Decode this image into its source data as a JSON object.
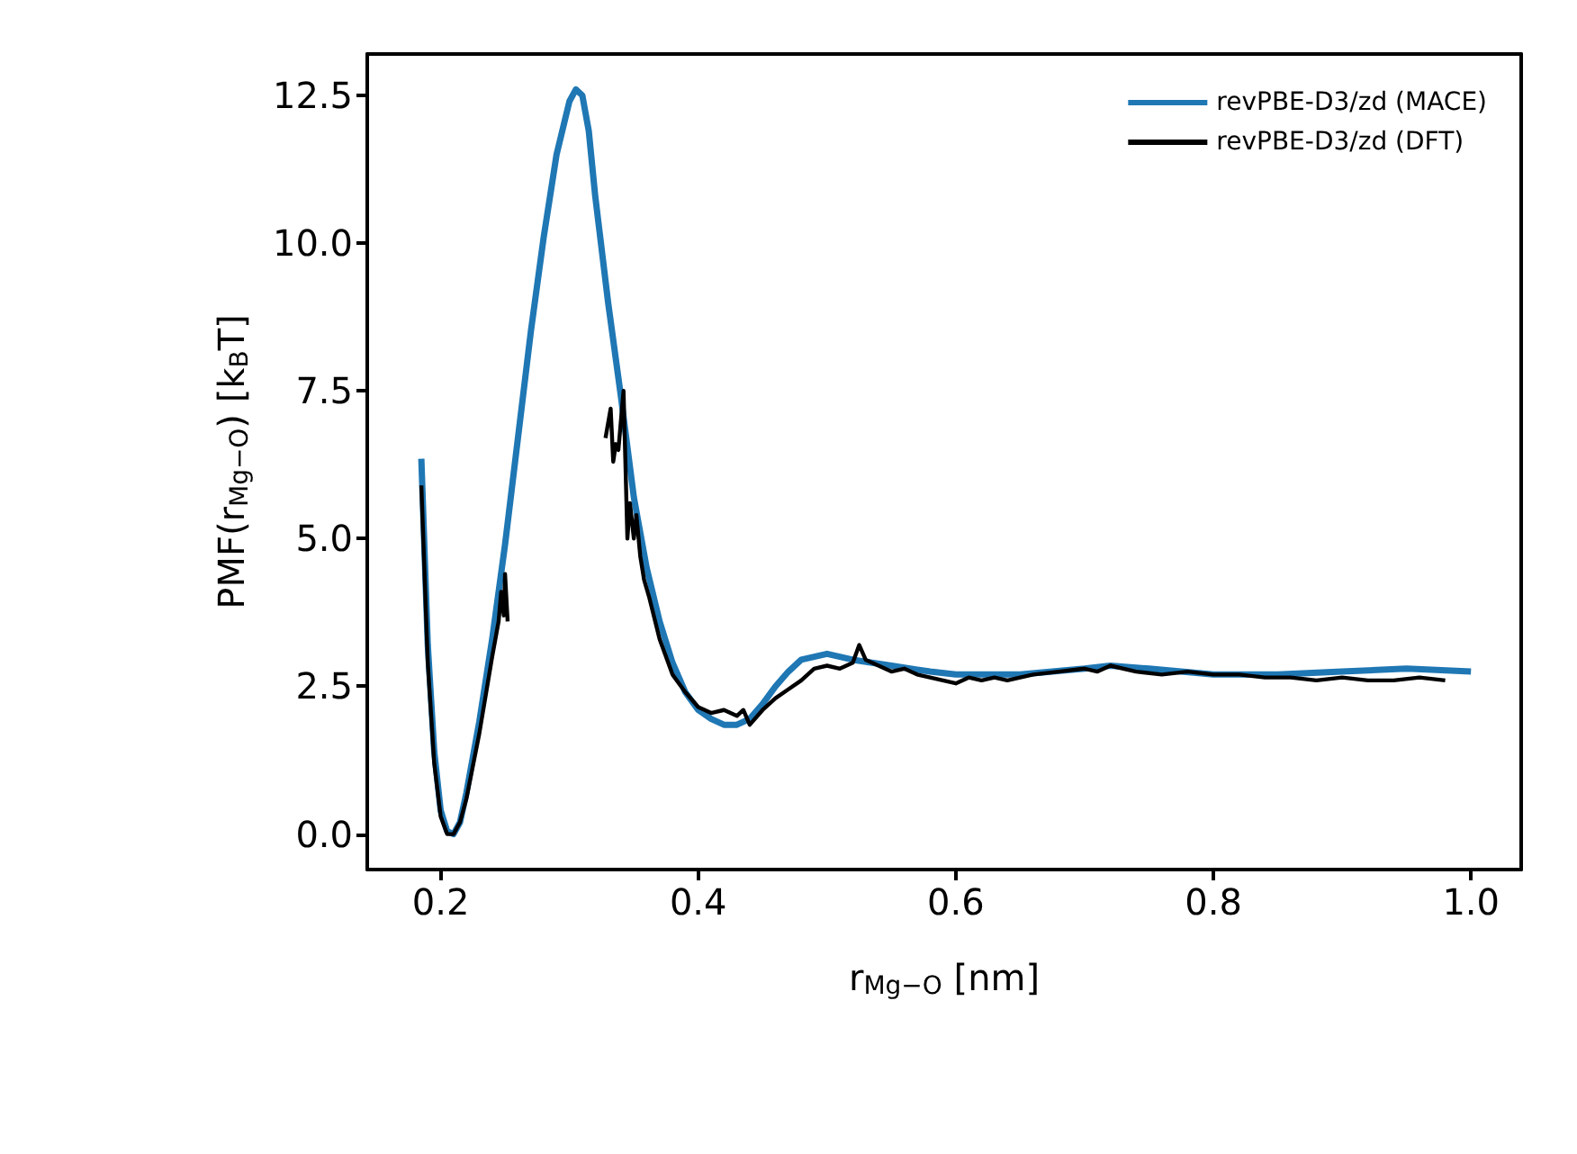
{
  "chart_data": {
    "type": "line",
    "xlabel": "r$_{Mg−O}$ [nm]",
    "ylabel": "PMF(r$_{Mg−O}$) [k$_{B}$T]",
    "xlim": [
      0.143,
      1.039
    ],
    "ylim": [
      -0.6,
      13.2
    ],
    "xticks": [
      0.2,
      0.4,
      0.6,
      0.8,
      {
        "value": 1.0,
        "label": "1.0"
      }
    ],
    "yticks": [
      {
        "value": 0,
        "label": "0.0"
      },
      2.5,
      {
        "value": 5,
        "label": "5.0"
      },
      7.5,
      {
        "value": 10,
        "label": "10.0"
      },
      12.5
    ],
    "grid": false,
    "legend": "top right",
    "marker": "none",
    "line_style": "solid",
    "series": [
      {
        "name": "revPBE-D3/zd (MACE)",
        "color": "#1f77b4",
        "x": [
          0.185,
          0.19,
          0.195,
          0.2,
          0.205,
          0.21,
          0.215,
          0.22,
          0.23,
          0.24,
          0.25,
          0.26,
          0.27,
          0.28,
          0.29,
          0.3,
          0.305,
          0.31,
          0.315,
          0.32,
          0.33,
          0.34,
          0.35,
          0.36,
          0.37,
          0.38,
          0.39,
          0.4,
          0.41,
          0.42,
          0.43,
          0.44,
          0.45,
          0.46,
          0.47,
          0.48,
          0.5,
          0.52,
          0.55,
          0.58,
          0.6,
          0.65,
          0.7,
          0.72,
          0.75,
          0.8,
          0.85,
          0.9,
          0.95,
          1.0
        ],
        "values": [
          6.35,
          3.2,
          1.4,
          0.4,
          0.05,
          0.0,
          0.2,
          0.7,
          1.9,
          3.3,
          4.9,
          6.7,
          8.5,
          10.1,
          11.5,
          12.4,
          12.6,
          12.5,
          11.9,
          10.8,
          9.0,
          7.4,
          5.7,
          4.5,
          3.6,
          2.9,
          2.4,
          2.1,
          1.95,
          1.85,
          1.85,
          1.95,
          2.2,
          2.5,
          2.75,
          2.95,
          3.05,
          2.95,
          2.85,
          2.75,
          2.7,
          2.7,
          2.8,
          2.85,
          2.8,
          2.7,
          2.7,
          2.75,
          2.8,
          2.75
        ]
      },
      {
        "name": "revPBE-D3/zd (DFT)",
        "color": "#000000",
        "x": [
          0.185,
          0.19,
          0.195,
          0.2,
          0.205,
          0.21,
          0.215,
          0.22,
          0.23,
          0.24,
          0.245,
          0.247,
          0.249,
          0.25,
          0.252,
          0.29,
          0.328,
          0.332,
          0.334,
          0.336,
          0.338,
          0.342,
          0.345,
          0.347,
          0.35,
          0.352,
          0.355,
          0.358,
          0.362,
          0.37,
          0.38,
          0.39,
          0.4,
          0.41,
          0.42,
          0.43,
          0.435,
          0.44,
          0.45,
          0.46,
          0.47,
          0.48,
          0.49,
          0.5,
          0.51,
          0.52,
          0.525,
          0.53,
          0.54,
          0.55,
          0.56,
          0.57,
          0.58,
          0.59,
          0.6,
          0.61,
          0.62,
          0.63,
          0.64,
          0.65,
          0.66,
          0.68,
          0.7,
          0.71,
          0.72,
          0.74,
          0.76,
          0.78,
          0.8,
          0.82,
          0.84,
          0.86,
          0.88,
          0.9,
          0.92,
          0.94,
          0.96,
          0.98
        ],
        "values": [
          5.9,
          2.9,
          1.2,
          0.3,
          0.0,
          0.0,
          0.2,
          0.6,
          1.7,
          3.0,
          3.6,
          4.1,
          3.7,
          4.4,
          3.6,
          null,
          6.7,
          7.2,
          6.3,
          6.6,
          6.5,
          7.5,
          5.0,
          5.6,
          5.0,
          5.4,
          4.7,
          4.3,
          4.0,
          3.3,
          2.7,
          2.4,
          2.15,
          2.05,
          2.1,
          2.0,
          2.1,
          1.85,
          2.1,
          2.3,
          2.45,
          2.6,
          2.8,
          2.85,
          2.8,
          2.9,
          3.2,
          2.95,
          2.85,
          2.75,
          2.8,
          2.7,
          2.65,
          2.6,
          2.55,
          2.65,
          2.6,
          2.65,
          2.6,
          2.65,
          2.7,
          2.75,
          2.8,
          2.75,
          2.85,
          2.75,
          2.7,
          2.75,
          2.7,
          2.7,
          2.65,
          2.65,
          2.6,
          2.65,
          2.6,
          2.6,
          2.65,
          2.6
        ]
      }
    ]
  }
}
